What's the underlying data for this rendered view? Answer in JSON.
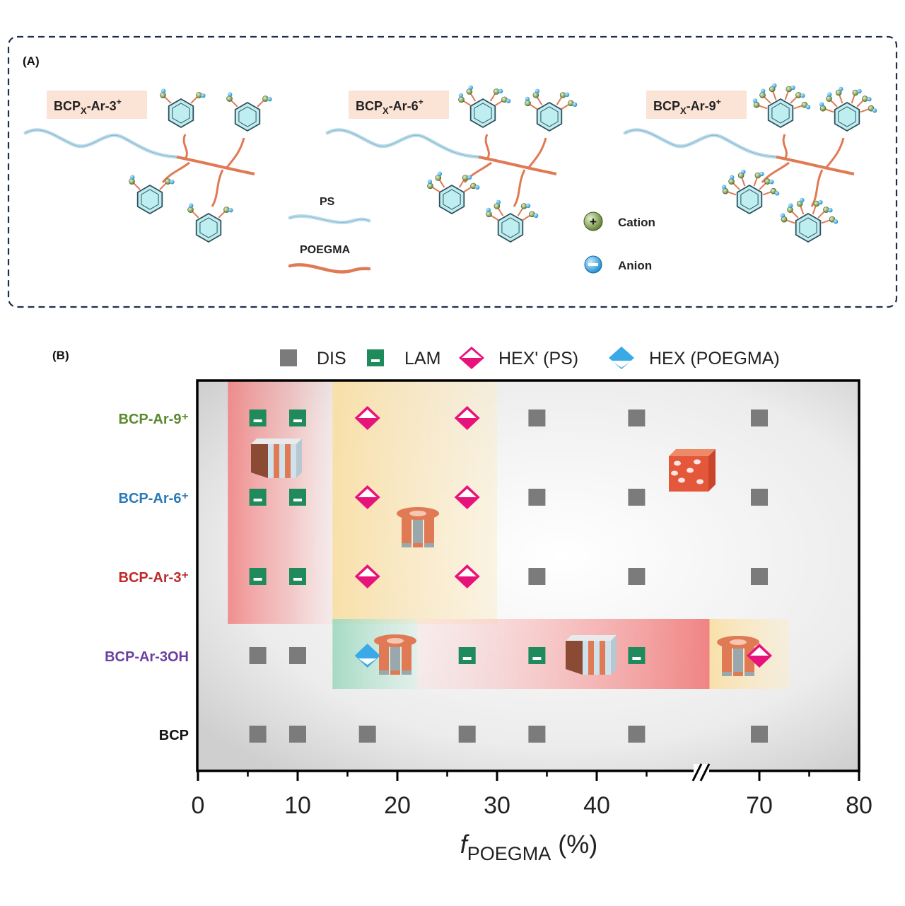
{
  "panel_a": {
    "panel_label": "(A)",
    "molecules": [
      {
        "label_main": "BCP",
        "label_sub": "X",
        "label_rest": "-Ar-3",
        "label_sup": "+",
        "arms": 1
      },
      {
        "label_main": "BCP",
        "label_sub": "X",
        "label_rest": "-Ar-6",
        "label_sup": "+",
        "arms": 2
      },
      {
        "label_main": "BCP",
        "label_sub": "X",
        "label_rest": "-Ar-9",
        "label_sup": "+",
        "arms": 3
      }
    ],
    "legend": {
      "ps": "PS",
      "poegma": "POEGMA",
      "cation": "Cation",
      "anion": "Anion",
      "cation_sign": "+",
      "anion_sign": "−"
    },
    "colors": {
      "ps": "#9dc3d8",
      "poegma": "#e07a55",
      "ring": "#bfeef0",
      "cation": "#6a8a3c",
      "anion": "#2a9fd6",
      "border": "#1f2d4d",
      "label_bg": "#fbe3d6"
    }
  },
  "panel_b": {
    "panel_label": "(B)",
    "legend": [
      {
        "marker": "square",
        "label": "DIS"
      },
      {
        "marker": "lam",
        "label": "LAM"
      },
      {
        "marker": "diamond-pink",
        "label": "HEX' (PS)"
      },
      {
        "marker": "diamond-blue",
        "label": "HEX (POEGMA)"
      }
    ],
    "colors": {
      "dis": "#7b7b7b",
      "lam": "#1f8a5b",
      "hex_ps": "#e8137a",
      "hex_poegma": "#3aa9e8",
      "lam_region": "#f08a8a",
      "hex_region": "#f9d99a",
      "hexb_region": "#a8ddc8",
      "bcp_ar_9": "#5a8a2e",
      "bcp_ar_6": "#2a7ab8",
      "bcp_ar_3": "#c0282a",
      "bcp_ar_3oh": "#6b3fa0",
      "bcp": "#111111"
    }
  },
  "chart_data": {
    "type": "scatter",
    "xlabel_italic": "f",
    "xlabel_sub": "POEGMA",
    "xlabel_rest": " (%)",
    "x_ticks": [
      "0",
      "10",
      "20",
      "30",
      "40",
      "70",
      "80"
    ],
    "x_break": "axis break between 45 and 65",
    "xlim": [
      0,
      80
    ],
    "categories": [
      "BCP-Ar-9⁺",
      "BCP-Ar-6⁺",
      "BCP-Ar-3⁺",
      "BCP-Ar-3OH",
      "BCP"
    ],
    "series": [
      {
        "category": "BCP-Ar-9⁺",
        "points": [
          {
            "x": 6,
            "phase": "LAM"
          },
          {
            "x": 10,
            "phase": "LAM"
          },
          {
            "x": 17,
            "phase": "HEX' (PS)"
          },
          {
            "x": 27,
            "phase": "HEX' (PS)"
          },
          {
            "x": 34,
            "phase": "DIS"
          },
          {
            "x": 44,
            "phase": "DIS"
          },
          {
            "x": 70,
            "phase": "DIS"
          }
        ]
      },
      {
        "category": "BCP-Ar-6⁺",
        "points": [
          {
            "x": 6,
            "phase": "LAM"
          },
          {
            "x": 10,
            "phase": "LAM"
          },
          {
            "x": 17,
            "phase": "HEX' (PS)"
          },
          {
            "x": 27,
            "phase": "HEX' (PS)"
          },
          {
            "x": 34,
            "phase": "DIS"
          },
          {
            "x": 44,
            "phase": "DIS"
          },
          {
            "x": 70,
            "phase": "DIS"
          }
        ]
      },
      {
        "category": "BCP-Ar-3⁺",
        "points": [
          {
            "x": 6,
            "phase": "LAM"
          },
          {
            "x": 10,
            "phase": "LAM"
          },
          {
            "x": 17,
            "phase": "HEX' (PS)"
          },
          {
            "x": 27,
            "phase": "HEX' (PS)"
          },
          {
            "x": 34,
            "phase": "DIS"
          },
          {
            "x": 44,
            "phase": "DIS"
          },
          {
            "x": 70,
            "phase": "DIS"
          }
        ]
      },
      {
        "category": "BCP-Ar-3OH",
        "points": [
          {
            "x": 6,
            "phase": "DIS"
          },
          {
            "x": 10,
            "phase": "DIS"
          },
          {
            "x": 17,
            "phase": "HEX (POEGMA)"
          },
          {
            "x": 27,
            "phase": "LAM"
          },
          {
            "x": 34,
            "phase": "LAM"
          },
          {
            "x": 44,
            "phase": "LAM"
          },
          {
            "x": 70,
            "phase": "HEX' (PS)"
          }
        ]
      },
      {
        "category": "BCP",
        "points": [
          {
            "x": 6,
            "phase": "DIS"
          },
          {
            "x": 10,
            "phase": "DIS"
          },
          {
            "x": 17,
            "phase": "DIS"
          },
          {
            "x": 27,
            "phase": "DIS"
          },
          {
            "x": 34,
            "phase": "DIS"
          },
          {
            "x": 44,
            "phase": "DIS"
          },
          {
            "x": 70,
            "phase": "DIS"
          }
        ]
      }
    ],
    "regions": [
      {
        "rows": [
          "BCP-Ar-9⁺",
          "BCP-Ar-6⁺",
          "BCP-Ar-3⁺"
        ],
        "x_range": [
          3,
          13.5
        ],
        "phase": "LAM"
      },
      {
        "rows": [
          "BCP-Ar-9⁺",
          "BCP-Ar-6⁺",
          "BCP-Ar-3⁺"
        ],
        "x_range": [
          13.5,
          30
        ],
        "phase": "HEX' (PS)"
      },
      {
        "rows": [
          "BCP-Ar-3OH"
        ],
        "x_range": [
          13.5,
          22
        ],
        "phase": "HEX (POEGMA)"
      },
      {
        "rows": [
          "BCP-Ar-3OH"
        ],
        "x_range": [
          22,
          65
        ],
        "phase": "LAM"
      },
      {
        "rows": [
          "BCP-Ar-3OH"
        ],
        "x_range": [
          65,
          73
        ],
        "phase": "HEX' (PS)"
      }
    ]
  }
}
